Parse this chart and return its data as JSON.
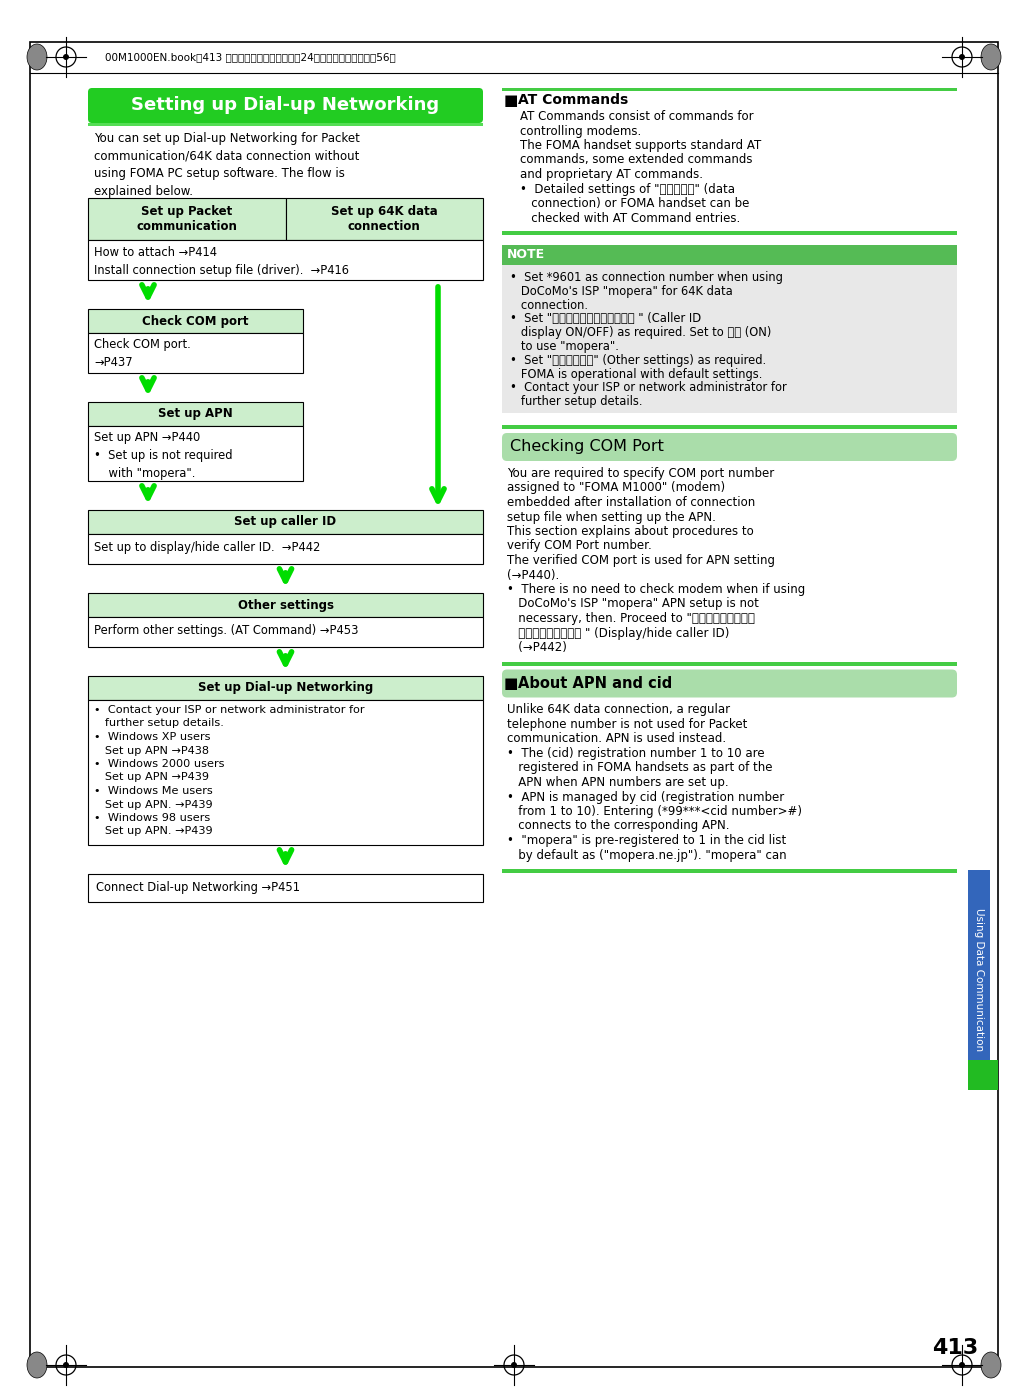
{
  "page_num": "413",
  "header_text": "00M1000EN.book　413 ページ　２００４年１１月24日　水曜日　午前７時56分",
  "sidebar_text": "Using Data Communication",
  "page_bg": "#ffffff",
  "green_header_bg": "#22cc22",
  "green_header_text": "#ffffff",
  "green_header_title": "Setting up Dial-up Networking",
  "light_green_bg": "#cceecc",
  "table_border": "#000000",
  "arrow_color": "#00dd00",
  "note_bg": "#dddddd",
  "note_header_bg": "#55bb55",
  "section_header_bg": "#cceecc",
  "checking_com_header_bg": "#aaddaa",
  "about_apn_header_bg": "#aaddaa",
  "intro_text": "You can set up Dial-up Networking for Packet\ncommunication/64K data connection without\nusing FOMA PC setup software. The flow is\nexplained below.",
  "col1_header": "Set up Packet\ncommunication",
  "col2_header": "Set up 64K data\nconnection",
  "row1_text": "How to attach →P414\nInstall connection setup file (driver).  →P416",
  "box1_header": "Check COM port",
  "box1_content": "Check COM port.\n→P437",
  "box2_header": "Set up APN",
  "box2_content": "Set up APN →P440\n•  Set up is not required\n    with \"mopera\".",
  "box3_header": "Set up caller ID",
  "box3_content": "Set up to display/hide caller ID.  →P442",
  "box4_header": "Other settings",
  "box4_content": "Perform other settings. (AT Command) →P453",
  "box5_header": "Set up Dial-up Networking",
  "box5_content_lines": [
    "•  Contact your ISP or network administrator for",
    "   further setup details.",
    "•  Windows XP users",
    "   Set up APN →P438",
    "•  Windows 2000 users",
    "   Set up APN →P439",
    "•  Windows Me users",
    "   Set up APN. →P439",
    "•  Windows 98 users",
    "   Set up APN. →P439"
  ],
  "connect_text": "Connect Dial-up Networking →P451",
  "right_at_title": "AT Commands",
  "right_at_content_lines": [
    "AT Commands consist of commands for",
    "controlling modems.",
    "The FOMA handset supports standard AT",
    "commands, some extended commands",
    "and proprietary AT commands.",
    "•  Detailed settings of \"データ通信\" (data",
    "   connection) or FOMA handset can be",
    "   checked with AT Command entries."
  ],
  "note_title": "NOTE",
  "note_content_lines": [
    "•  Set *9601 as connection number when using",
    "   DoCoMo's ISP \"mopera\" for 64K data",
    "   connection.",
    "•  Set \"発信者番号の通知／非通知 \" (Caller ID",
    "   display ON/OFF) as required. Set to 通知 (ON)",
    "   to use \"mopera\".",
    "•  Set \"その他の設定\" (Other settings) as required.",
    "   FOMA is operational with default settings.",
    "•  Contact your ISP or network administrator for",
    "   further setup details."
  ],
  "checking_com_title": "Checking COM Port",
  "checking_com_lines": [
    "You are required to specify COM port number",
    "assigned to \"FOMA M1000\" (modem)",
    "embedded after installation of connection",
    "setup file when setting up the APN.",
    "This section explains about procedures to",
    "verify COM Port number.",
    "The verified COM port is used for APN setting",
    "(→P440).",
    "•  There is no need to check modem when if using",
    "   DoCoMo's ISP \"mopera\" APN setup is not",
    "   necessary, then. Proceed to \"発信者番号の通知／",
    "   非通知を設定します \" (Display/hide caller ID)",
    "   (→P442)"
  ],
  "about_apn_title": "About APN and cid",
  "about_apn_lines": [
    "Unlike 64K data connection, a regular",
    "telephone number is not used for Packet",
    "communication. APN is used instead.",
    "•  The (cid) registration number 1 to 10 are",
    "   registered in FOMA handsets as part of the",
    "   APN when APN numbers are set up.",
    "•  APN is managed by cid (registration number",
    "   from 1 to 10). Entering (*99***<cid number>#)",
    "   connects to the corresponding APN.",
    "•  \"mopera\" is pre-registered to 1 in the cid list",
    "   by default as (\"mopera.ne.jp\"). \"mopera\" can"
  ],
  "sidebar_bg": "#3366bb",
  "green_outer_border": "#66dd66"
}
